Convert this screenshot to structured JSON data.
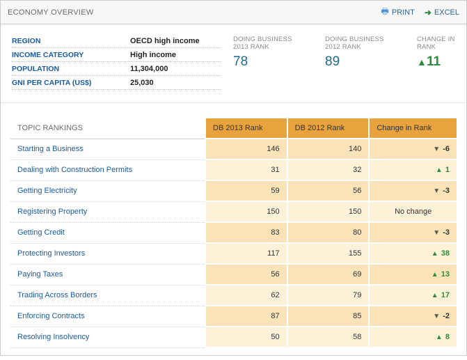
{
  "header": {
    "title": "ECONOMY OVERVIEW",
    "print_label": "PRINT",
    "excel_label": "EXCEL"
  },
  "facts": [
    {
      "label": "REGION",
      "value": "OECD high income"
    },
    {
      "label": "INCOME CATEGORY",
      "value": "High income"
    },
    {
      "label": "POPULATION",
      "value": "11,304,000"
    },
    {
      "label": "GNI PER CAPITA (US$)",
      "value": "25,030"
    }
  ],
  "metrics": {
    "rank2013_label_l1": "DOING BUSINESS",
    "rank2013_label_l2": "2013 RANK",
    "rank2013_value": "78",
    "rank2012_label_l1": "DOING BUSINESS",
    "rank2012_label_l2": "2012 RANK",
    "rank2012_value": "89",
    "change_label_l1": "CHANGE IN",
    "change_label_l2": "RANK",
    "change_direction": "up",
    "change_value": "11"
  },
  "topics_table": {
    "columns": {
      "topic": "TOPIC RANKINGS",
      "db2013": "DB 2013 Rank",
      "db2012": "DB 2012 Rank",
      "change": "Change in Rank"
    },
    "no_change_label": "No change",
    "colors": {
      "header_orange": "#e8a33d",
      "row_dark": "#fbe3b8",
      "row_light": "#fdf1d8",
      "link": "#1a5a9e",
      "up": "#2e8b3d",
      "down": "#555555"
    },
    "rows": [
      {
        "topic": "Starting a Business",
        "db2013": 146,
        "db2012": 140,
        "dir": "down",
        "delta": "-6"
      },
      {
        "topic": "Dealing with Construction Permits",
        "db2013": 31,
        "db2012": 32,
        "dir": "up",
        "delta": "1"
      },
      {
        "topic": "Getting Electricity",
        "db2013": 59,
        "db2012": 56,
        "dir": "down",
        "delta": "-3"
      },
      {
        "topic": "Registering Property",
        "db2013": 150,
        "db2012": 150,
        "dir": "none",
        "delta": ""
      },
      {
        "topic": "Getting Credit",
        "db2013": 83,
        "db2012": 80,
        "dir": "down",
        "delta": "-3"
      },
      {
        "topic": "Protecting Investors",
        "db2013": 117,
        "db2012": 155,
        "dir": "up",
        "delta": "38"
      },
      {
        "topic": "Paying Taxes",
        "db2013": 56,
        "db2012": 69,
        "dir": "up",
        "delta": "13"
      },
      {
        "topic": "Trading Across Borders",
        "db2013": 62,
        "db2012": 79,
        "dir": "up",
        "delta": "17"
      },
      {
        "topic": "Enforcing Contracts",
        "db2013": 87,
        "db2012": 85,
        "dir": "down",
        "delta": "-2"
      },
      {
        "topic": "Resolving Insolvency",
        "db2013": 50,
        "db2012": 58,
        "dir": "up",
        "delta": "8"
      }
    ]
  }
}
